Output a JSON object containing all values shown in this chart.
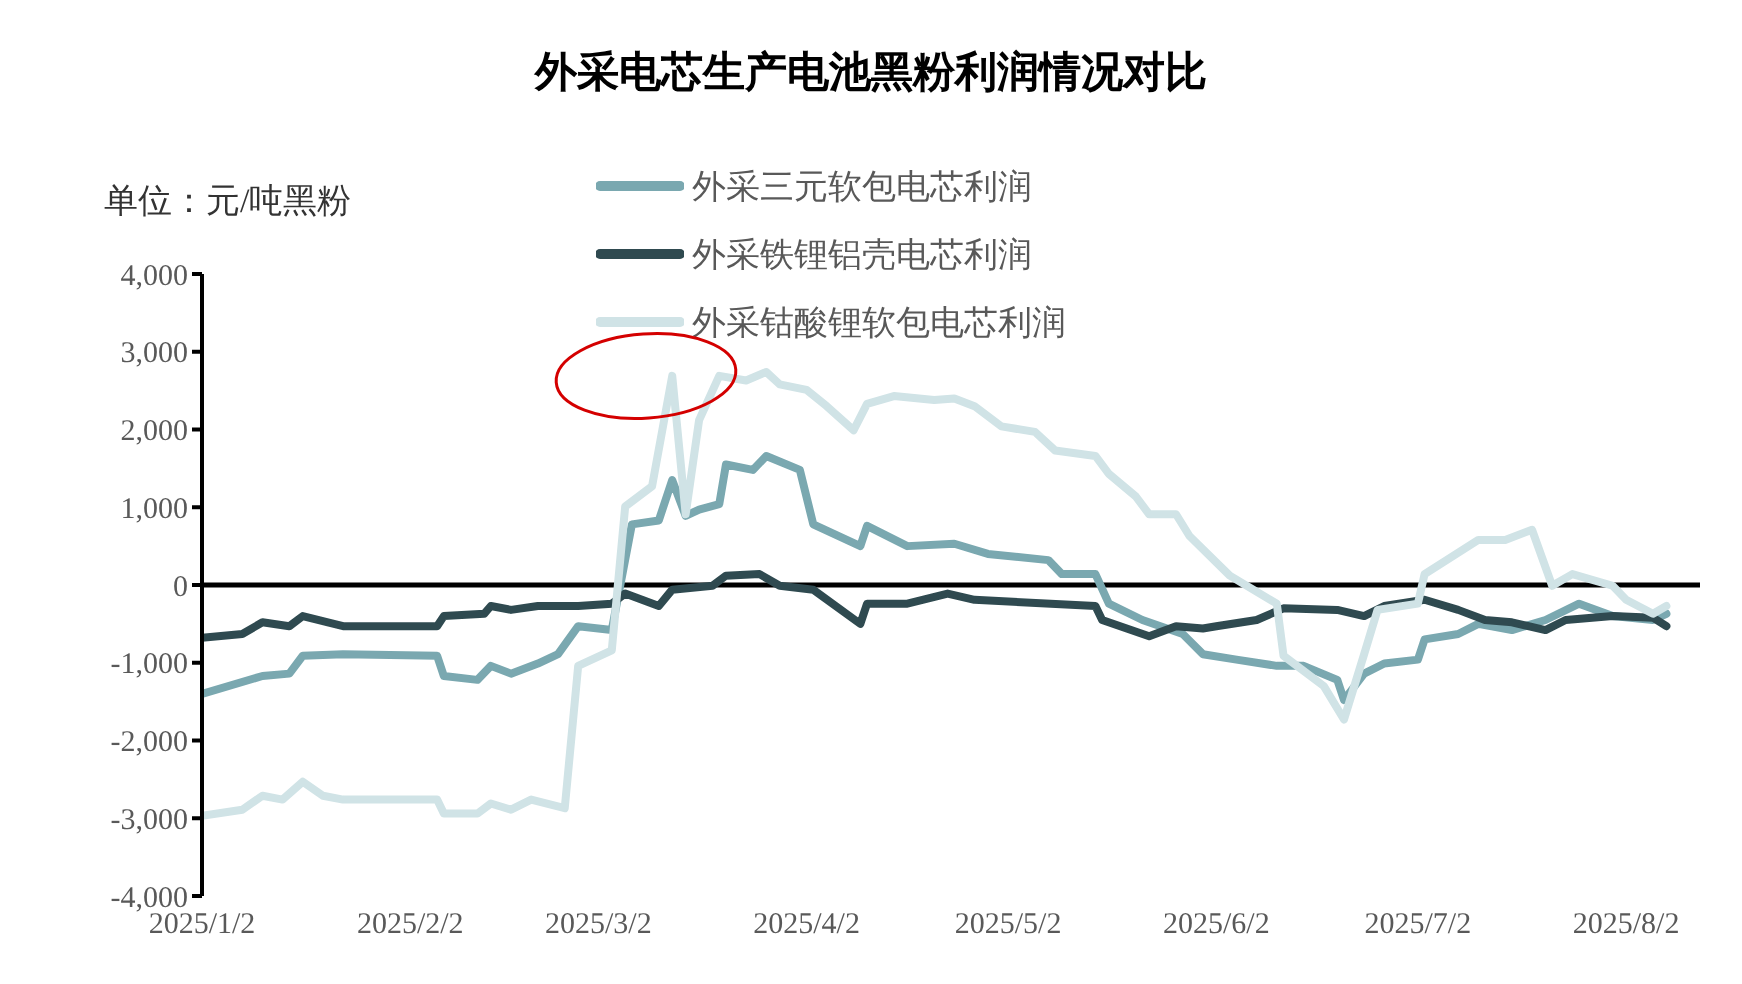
{
  "chart_data": {
    "type": "line",
    "title": "外采电芯生产电池黑粉利润情况对比",
    "ylabel": "单位：元/吨黑粉",
    "xlim": [
      "2025-01-02",
      "2025-08-13"
    ],
    "xticks": [
      {
        "value": "2025-01-02",
        "label": "2025/1/2"
      },
      {
        "value": "2025-02-02",
        "label": "2025/2/2"
      },
      {
        "value": "2025-03-02",
        "label": "2025/3/2"
      },
      {
        "value": "2025-04-02",
        "label": "2025/4/2"
      },
      {
        "value": "2025-05-02",
        "label": "2025/5/2"
      },
      {
        "value": "2025-06-02",
        "label": "2025/6/2"
      },
      {
        "value": "2025-07-02",
        "label": "2025/7/2"
      },
      {
        "value": "2025-08-02",
        "label": "2025/8/2"
      }
    ],
    "ylim": [
      -4000,
      4000
    ],
    "yticks": [
      {
        "value": -4000,
        "label": "-4,000"
      },
      {
        "value": -3000,
        "label": "-3,000"
      },
      {
        "value": -2000,
        "label": "-2,000"
      },
      {
        "value": -1000,
        "label": "-1,000"
      },
      0,
      {
        "value": 1000,
        "label": "1,000"
      },
      {
        "value": 2000,
        "label": "2,000"
      },
      {
        "value": 3000,
        "label": "3,000"
      },
      {
        "value": 4000,
        "label": "4,000"
      }
    ],
    "ref_lines": [
      {
        "axis": "y",
        "value": 0,
        "color": "#000000"
      }
    ],
    "grid": false,
    "legend": "top",
    "marker": "none",
    "line_style": "solid",
    "series": [
      {
        "name": "外采三元软包电芯利润",
        "color": "#7aa8b0",
        "x": [
          "2025-01-02",
          "2025-01-11",
          "2025-01-15",
          "2025-01-17",
          "2025-01-23",
          "2025-02-06",
          "2025-02-07",
          "2025-02-12",
          "2025-02-14",
          "2025-02-17",
          "2025-02-21",
          "2025-02-24",
          "2025-02-27",
          "2025-03-04",
          "2025-03-07",
          "2025-03-11",
          "2025-03-13",
          "2025-03-15",
          "2025-03-17",
          "2025-03-20",
          "2025-03-21",
          "2025-03-25",
          "2025-03-27",
          "2025-04-01",
          "2025-04-03",
          "2025-04-10",
          "2025-04-11",
          "2025-04-17",
          "2025-04-24",
          "2025-04-29",
          "2025-05-08",
          "2025-05-10",
          "2025-05-15",
          "2025-05-17",
          "2025-05-22",
          "2025-05-28",
          "2025-05-31",
          "2025-06-05",
          "2025-06-11",
          "2025-06-15",
          "2025-06-20",
          "2025-06-21",
          "2025-06-24",
          "2025-06-27",
          "2025-07-02",
          "2025-07-03",
          "2025-07-08",
          "2025-07-11",
          "2025-07-16",
          "2025-07-21",
          "2025-07-26",
          "2025-07-31",
          "2025-08-06",
          "2025-08-08"
        ],
        "values": [
          -1400,
          -1170,
          -1140,
          -910,
          -890,
          -910,
          -1170,
          -1220,
          -1040,
          -1140,
          -1010,
          -890,
          -530,
          -580,
          780,
          830,
          1350,
          890,
          970,
          1040,
          1550,
          1480,
          1660,
          1480,
          780,
          500,
          760,
          500,
          530,
          400,
          320,
          140,
          140,
          -240,
          -450,
          -630,
          -890,
          -960,
          -1040,
          -1040,
          -1220,
          -1480,
          -1140,
          -1010,
          -960,
          -700,
          -630,
          -500,
          -580,
          -450,
          -240,
          -400,
          -450,
          -370
        ]
      },
      {
        "name": "外采铁锂铝壳电芯利润",
        "color": "#2f4a50",
        "x": [
          "2025-01-02",
          "2025-01-08",
          "2025-01-11",
          "2025-01-15",
          "2025-01-17",
          "2025-01-23",
          "2025-02-06",
          "2025-02-07",
          "2025-02-13",
          "2025-02-14",
          "2025-02-17",
          "2025-02-21",
          "2025-02-27",
          "2025-03-04",
          "2025-03-06",
          "2025-03-11",
          "2025-03-13",
          "2025-03-19",
          "2025-03-21",
          "2025-03-26",
          "2025-03-29",
          "2025-04-03",
          "2025-04-10",
          "2025-04-11",
          "2025-04-17",
          "2025-04-23",
          "2025-04-27",
          "2025-05-15",
          "2025-05-16",
          "2025-05-23",
          "2025-05-27",
          "2025-05-31",
          "2025-06-02",
          "2025-06-08",
          "2025-06-12",
          "2025-06-20",
          "2025-06-24",
          "2025-06-27",
          "2025-07-03",
          "2025-07-08",
          "2025-07-12",
          "2025-07-16",
          "2025-07-21",
          "2025-07-24",
          "2025-07-31",
          "2025-08-06",
          "2025-08-08"
        ],
        "values": [
          -680,
          -630,
          -480,
          -530,
          -400,
          -530,
          -530,
          -400,
          -370,
          -270,
          -320,
          -270,
          -270,
          -240,
          -110,
          -270,
          -60,
          -10,
          120,
          140,
          -10,
          -60,
          -500,
          -240,
          -240,
          -110,
          -190,
          -270,
          -450,
          -660,
          -530,
          -560,
          -530,
          -450,
          -300,
          -320,
          -400,
          -270,
          -190,
          -320,
          -450,
          -480,
          -580,
          -450,
          -400,
          -420,
          -530
        ]
      },
      {
        "name": "外采钴酸锂软包电芯利润",
        "color": "#d0e3e6",
        "x": [
          "2025-01-02",
          "2025-01-08",
          "2025-01-11",
          "2025-01-14",
          "2025-01-17",
          "2025-01-20",
          "2025-01-23",
          "2025-02-06",
          "2025-02-07",
          "2025-02-12",
          "2025-02-14",
          "2025-02-17",
          "2025-02-20",
          "2025-02-25",
          "2025-02-27",
          "2025-03-04",
          "2025-03-06",
          "2025-03-10",
          "2025-03-13",
          "2025-03-15",
          "2025-03-17",
          "2025-03-20",
          "2025-03-24",
          "2025-03-27",
          "2025-03-29",
          "2025-04-02",
          "2025-04-05",
          "2025-04-09",
          "2025-04-11",
          "2025-04-15",
          "2025-04-21",
          "2025-04-24",
          "2025-04-27",
          "2025-05-01",
          "2025-05-06",
          "2025-05-09",
          "2025-05-15",
          "2025-05-17",
          "2025-05-21",
          "2025-05-23",
          "2025-05-27",
          "2025-05-29",
          "2025-06-04",
          "2025-06-11",
          "2025-06-12",
          "2025-06-18",
          "2025-06-21",
          "2025-06-24",
          "2025-06-26",
          "2025-07-02",
          "2025-07-03",
          "2025-07-11",
          "2025-07-15",
          "2025-07-19",
          "2025-07-22",
          "2025-07-25",
          "2025-07-31",
          "2025-08-02",
          "2025-08-06",
          "2025-08-08"
        ],
        "values": [
          -2970,
          -2890,
          -2710,
          -2760,
          -2530,
          -2710,
          -2760,
          -2760,
          -2940,
          -2940,
          -2810,
          -2890,
          -2760,
          -2870,
          -1040,
          -840,
          1010,
          1270,
          2690,
          910,
          2120,
          2690,
          2630,
          2740,
          2580,
          2510,
          2300,
          1990,
          2330,
          2430,
          2380,
          2400,
          2300,
          2040,
          1970,
          1730,
          1660,
          1430,
          1140,
          910,
          910,
          630,
          120,
          -240,
          -910,
          -1300,
          -1730,
          -890,
          -320,
          -240,
          140,
          580,
          580,
          710,
          -10,
          140,
          -10,
          -190,
          -370,
          -270
        ]
      }
    ]
  }
}
